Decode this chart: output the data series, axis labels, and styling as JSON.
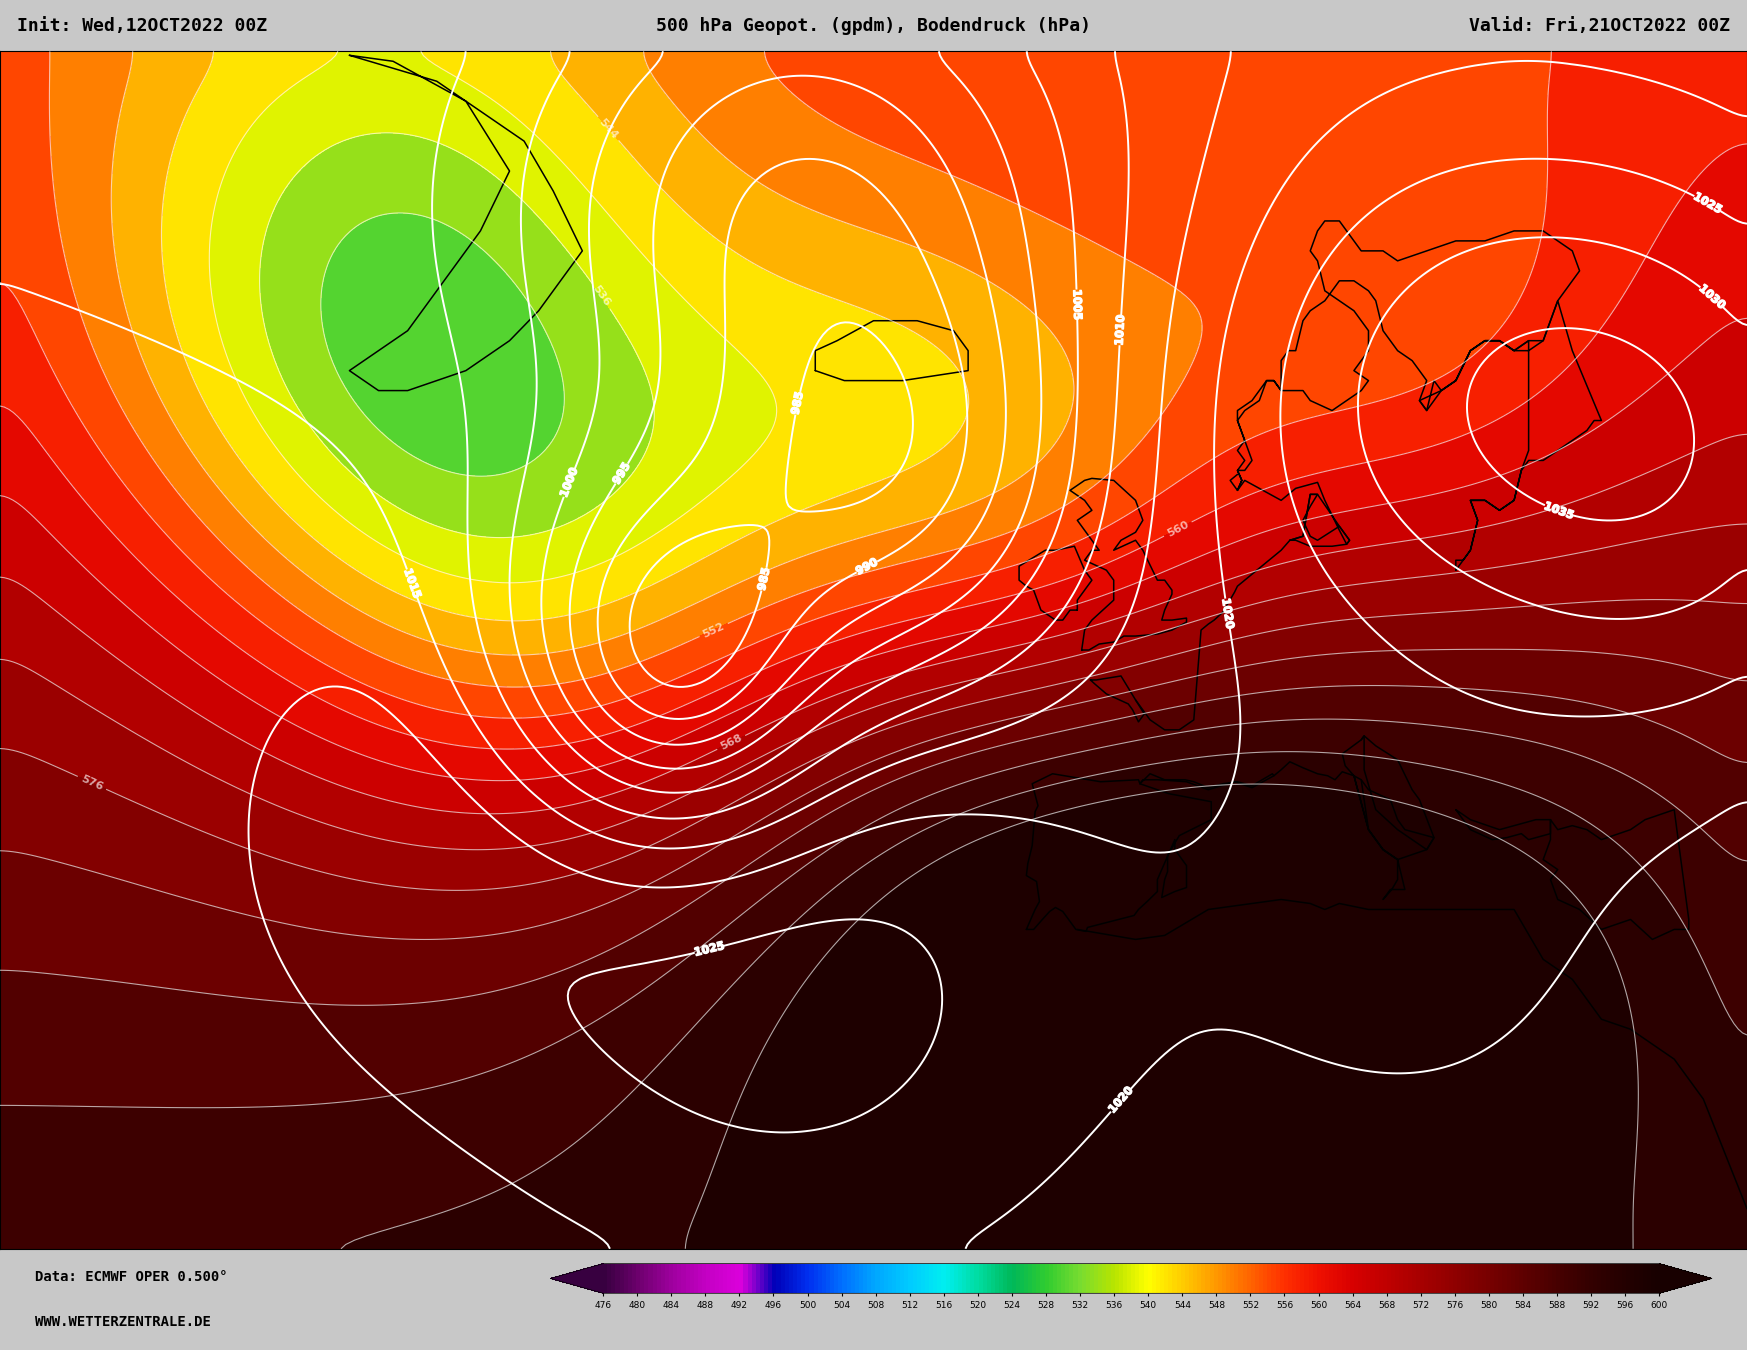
{
  "title_left": "Init: Wed,12OCT2022 00Z",
  "title_center": "500 hPa Geopot. (gpdm), Bodendruck (hPa)",
  "title_right": "Valid: Fri,21OCT2022 00Z",
  "footer_left1": "Data: ECMWF OPER 0.500°",
  "footer_left2": "WWW.WETTERZENTRALE.DE",
  "colorbar_values": [
    476,
    480,
    484,
    488,
    492,
    496,
    500,
    504,
    508,
    512,
    516,
    520,
    524,
    528,
    532,
    536,
    540,
    544,
    548,
    552,
    556,
    560,
    564,
    568,
    572,
    576,
    580,
    584,
    588,
    592,
    596,
    600
  ],
  "colorbar_colors": [
    "#380040",
    "#6e006e",
    "#a000a0",
    "#c400c4",
    "#dc00dc",
    "#0000b8",
    "#0030f0",
    "#0070ff",
    "#00a8ff",
    "#00ccff",
    "#00eef0",
    "#00dca0",
    "#00b858",
    "#30cc30",
    "#78dc30",
    "#b8e400",
    "#ffff00",
    "#ffcc00",
    "#ff9800",
    "#ff6400",
    "#ff3000",
    "#f01000",
    "#d80000",
    "#c00000",
    "#a80000",
    "#900000",
    "#780000",
    "#600000",
    "#480000",
    "#340000",
    "#240000",
    "#180000"
  ],
  "lon_min": -80,
  "lon_max": 40,
  "lat_min": 20,
  "lat_max": 80,
  "title_fontsize": 13,
  "footer_fontsize": 10,
  "header_color": "#c8c8c8",
  "footer_color": "#c8c8c8"
}
